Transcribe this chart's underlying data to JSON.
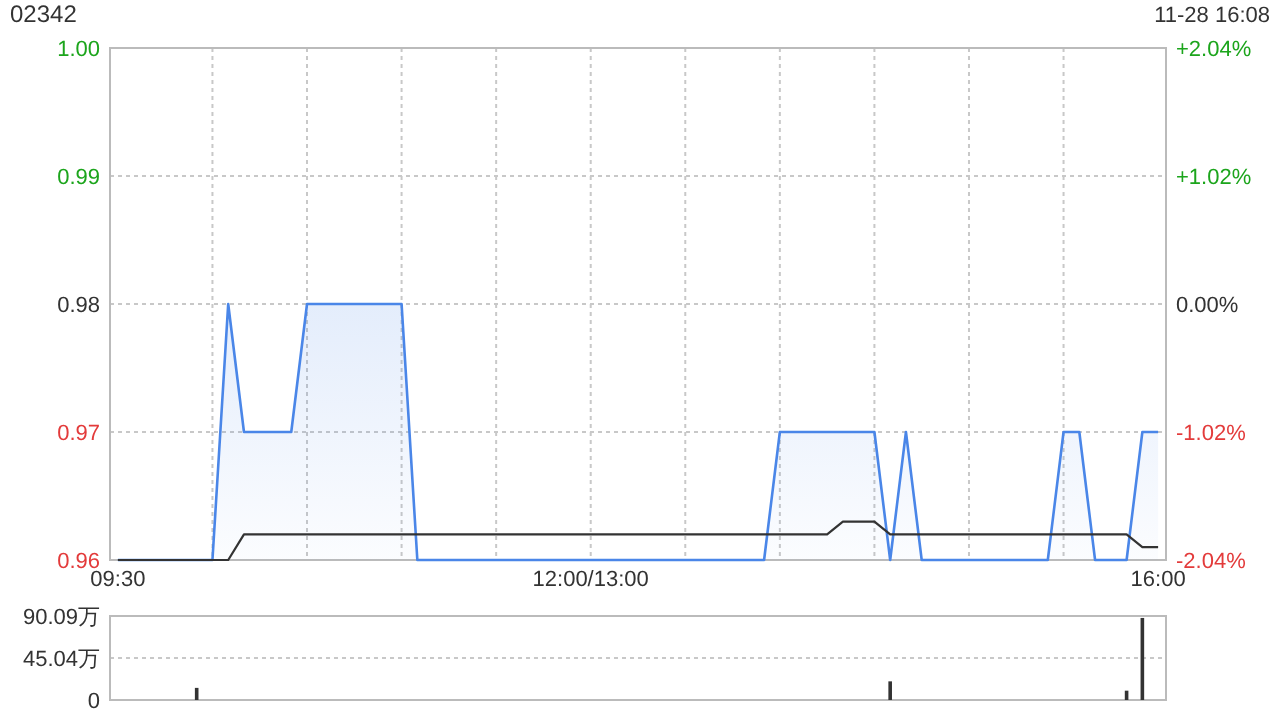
{
  "chart_data": [
    {
      "type": "area",
      "title": "02342",
      "subtitle": "11-28 16:08",
      "categories": [
        "09:30",
        null,
        null,
        null,
        null,
        null,
        null,
        null,
        null,
        null,
        null,
        null,
        null,
        null,
        null,
        null,
        null,
        null,
        null,
        null,
        null,
        null,
        null,
        null,
        null,
        null,
        null,
        null,
        null,
        null,
        "12:00/13:00",
        null,
        null,
        null,
        null,
        null,
        null,
        null,
        null,
        null,
        null,
        null,
        null,
        null,
        null,
        null,
        null,
        null,
        null,
        null,
        null,
        null,
        null,
        null,
        null,
        null,
        null,
        null,
        null,
        null,
        null,
        null,
        null,
        null,
        null,
        null,
        "16:00"
      ],
      "ylim": [
        0.96,
        1.0
      ],
      "yticks": [
        0.96,
        0.97,
        0.98,
        0.99,
        {
          "value": 1.0,
          "label": "1.00"
        }
      ],
      "y2lim": [
        -2.04,
        2.04
      ],
      "y2ticks": [
        {
          "value": -2.04,
          "label": "-2.04%"
        },
        {
          "value": -1.02,
          "label": "-1.02%"
        },
        {
          "value": 0,
          "label": "0.00%"
        },
        {
          "value": 1.02,
          "label": "+1.02%"
        },
        {
          "value": 2.04,
          "label": "+2.04%"
        }
      ],
      "grid": true,
      "series": [
        {
          "color": "#4a86e8",
          "values": [
            0.96,
            0.96,
            0.96,
            0.96,
            0.96,
            0.96,
            0.96,
            0.98,
            0.97,
            0.97,
            0.97,
            0.97,
            0.98,
            0.98,
            0.98,
            0.98,
            0.98,
            0.98,
            0.98,
            0.96,
            0.96,
            0.96,
            0.96,
            0.96,
            0.96,
            0.96,
            0.96,
            0.96,
            0.96,
            0.96,
            0.96,
            0.96,
            0.96,
            0.96,
            0.96,
            0.96,
            0.96,
            0.96,
            0.96,
            0.96,
            0.96,
            0.96,
            0.97,
            0.97,
            0.97,
            0.97,
            0.97,
            0.97,
            0.97,
            0.96,
            0.97,
            0.96,
            0.96,
            0.96,
            0.96,
            0.96,
            0.96,
            0.96,
            0.96,
            0.96,
            0.97,
            0.97,
            0.96,
            0.96,
            0.96,
            0.97,
            0.97
          ]
        },
        {
          "type": "line",
          "color": "#333333",
          "values": [
            0.96,
            0.96,
            0.96,
            0.96,
            0.96,
            0.96,
            0.96,
            0.96,
            0.962,
            0.962,
            0.962,
            0.962,
            0.962,
            0.962,
            0.962,
            0.962,
            0.962,
            0.962,
            0.962,
            0.962,
            0.962,
            0.962,
            0.962,
            0.962,
            0.962,
            0.962,
            0.962,
            0.962,
            0.962,
            0.962,
            0.962,
            0.962,
            0.962,
            0.962,
            0.962,
            0.962,
            0.962,
            0.962,
            0.962,
            0.962,
            0.962,
            0.962,
            0.962,
            0.962,
            0.962,
            0.962,
            0.963,
            0.963,
            0.963,
            0.962,
            0.962,
            0.962,
            0.962,
            0.962,
            0.962,
            0.962,
            0.962,
            0.962,
            0.962,
            0.962,
            0.962,
            0.962,
            0.962,
            0.962,
            0.962,
            0.961,
            0.961
          ]
        }
      ]
    },
    {
      "type": "bar",
      "ylim": [
        0,
        90.09
      ],
      "yticks": [
        0,
        {
          "value": 45.04,
          "label": "45.04万"
        },
        {
          "value": 90.09,
          "label": "90.09万"
        }
      ],
      "grid": "y",
      "tick_labels": "y",
      "categories": [
        null,
        null,
        null,
        null,
        null,
        null,
        null,
        null,
        null,
        null,
        null,
        null,
        null,
        null,
        null,
        null,
        null,
        null,
        null,
        null,
        null,
        null,
        null,
        null,
        null,
        null,
        null,
        null,
        null,
        null,
        null,
        null,
        null,
        null,
        null,
        null,
        null,
        null,
        null,
        null,
        null,
        null,
        null,
        null,
        null,
        null,
        null,
        null,
        null,
        null,
        null,
        null,
        null,
        null,
        null,
        null,
        null,
        null,
        null,
        null,
        null,
        null,
        null,
        null,
        null,
        null,
        null
      ],
      "series": [
        {
          "color": "#333333",
          "values": [
            null,
            null,
            null,
            null,
            null,
            13,
            null,
            null,
            null,
            null,
            null,
            null,
            null,
            null,
            null,
            null,
            null,
            null,
            null,
            null,
            null,
            null,
            null,
            null,
            null,
            null,
            null,
            null,
            null,
            null,
            null,
            null,
            null,
            null,
            null,
            null,
            null,
            null,
            null,
            null,
            null,
            null,
            null,
            null,
            null,
            null,
            null,
            null,
            null,
            20,
            null,
            null,
            null,
            null,
            null,
            null,
            null,
            null,
            null,
            null,
            null,
            null,
            null,
            null,
            10,
            88,
            null
          ]
        }
      ]
    }
  ]
}
